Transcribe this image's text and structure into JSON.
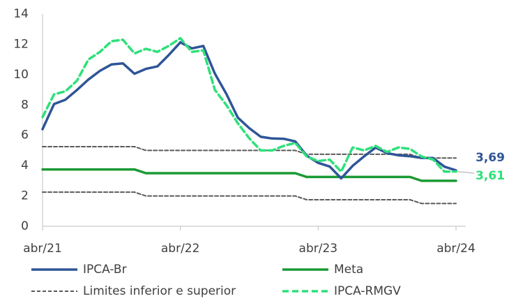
{
  "chart_data": {
    "type": "line",
    "categories": [
      "abr/21",
      null,
      null,
      null,
      null,
      null,
      null,
      null,
      null,
      null,
      null,
      null,
      "abr/22",
      null,
      null,
      null,
      null,
      null,
      null,
      null,
      null,
      null,
      null,
      null,
      "abr/23",
      null,
      null,
      null,
      null,
      null,
      null,
      null,
      null,
      null,
      null,
      null,
      "abr/24"
    ],
    "ylim": [
      0,
      14
    ],
    "yticks": [
      0,
      2,
      4,
      6,
      8,
      10,
      12,
      14
    ],
    "series": [
      {
        "name": "IPCA-Br",
        "color": "#2f5597",
        "style": "solid",
        "end_label": "3,69",
        "values": [
          6.4,
          8.06,
          8.35,
          8.99,
          9.68,
          10.25,
          10.67,
          10.74,
          10.06,
          10.38,
          10.54,
          11.3,
          12.13,
          11.73,
          11.89,
          10.07,
          8.73,
          7.17,
          6.47,
          5.9,
          5.79,
          5.77,
          5.6,
          4.65,
          4.18,
          3.94,
          3.16,
          3.99,
          4.61,
          5.19,
          4.82,
          4.68,
          4.62,
          4.51,
          4.5,
          3.93,
          3.69
        ]
      },
      {
        "name": "Meta",
        "color": "#1a9a33",
        "style": "solid",
        "values": [
          3.75,
          3.75,
          3.75,
          3.75,
          3.75,
          3.75,
          3.75,
          3.75,
          3.75,
          3.5,
          3.5,
          3.5,
          3.5,
          3.5,
          3.5,
          3.5,
          3.5,
          3.5,
          3.5,
          3.5,
          3.5,
          3.5,
          3.5,
          3.25,
          3.25,
          3.25,
          3.25,
          3.25,
          3.25,
          3.25,
          3.25,
          3.25,
          3.25,
          3.0,
          3.0,
          3.0,
          3.0
        ]
      },
      {
        "name": "Limites inferior e superior",
        "color": "#595959",
        "style": "dashed",
        "upper": [
          5.25,
          5.25,
          5.25,
          5.25,
          5.25,
          5.25,
          5.25,
          5.25,
          5.25,
          5.0,
          5.0,
          5.0,
          5.0,
          5.0,
          5.0,
          5.0,
          5.0,
          5.0,
          5.0,
          5.0,
          5.0,
          5.0,
          5.0,
          4.75,
          4.75,
          4.75,
          4.75,
          4.75,
          4.75,
          4.75,
          4.75,
          4.75,
          4.75,
          4.5,
          4.5,
          4.5,
          4.5
        ],
        "lower": [
          2.25,
          2.25,
          2.25,
          2.25,
          2.25,
          2.25,
          2.25,
          2.25,
          2.25,
          2.0,
          2.0,
          2.0,
          2.0,
          2.0,
          2.0,
          2.0,
          2.0,
          2.0,
          2.0,
          2.0,
          2.0,
          2.0,
          2.0,
          1.75,
          1.75,
          1.75,
          1.75,
          1.75,
          1.75,
          1.75,
          1.75,
          1.75,
          1.75,
          1.5,
          1.5,
          1.5,
          1.5
        ]
      },
      {
        "name": "IPCA-RMGV",
        "color": "#2ee07a",
        "style": "dashed",
        "end_label": "3,61",
        "values": [
          7.2,
          8.7,
          8.9,
          9.6,
          11.0,
          11.5,
          12.2,
          12.3,
          11.4,
          11.7,
          11.5,
          11.9,
          12.4,
          11.5,
          11.6,
          9.0,
          8.0,
          6.8,
          5.8,
          5.0,
          5.0,
          5.3,
          5.5,
          4.6,
          4.3,
          4.4,
          3.6,
          5.2,
          5.0,
          5.3,
          4.9,
          5.2,
          5.1,
          4.6,
          4.4,
          3.6,
          3.61
        ]
      }
    ]
  }
}
